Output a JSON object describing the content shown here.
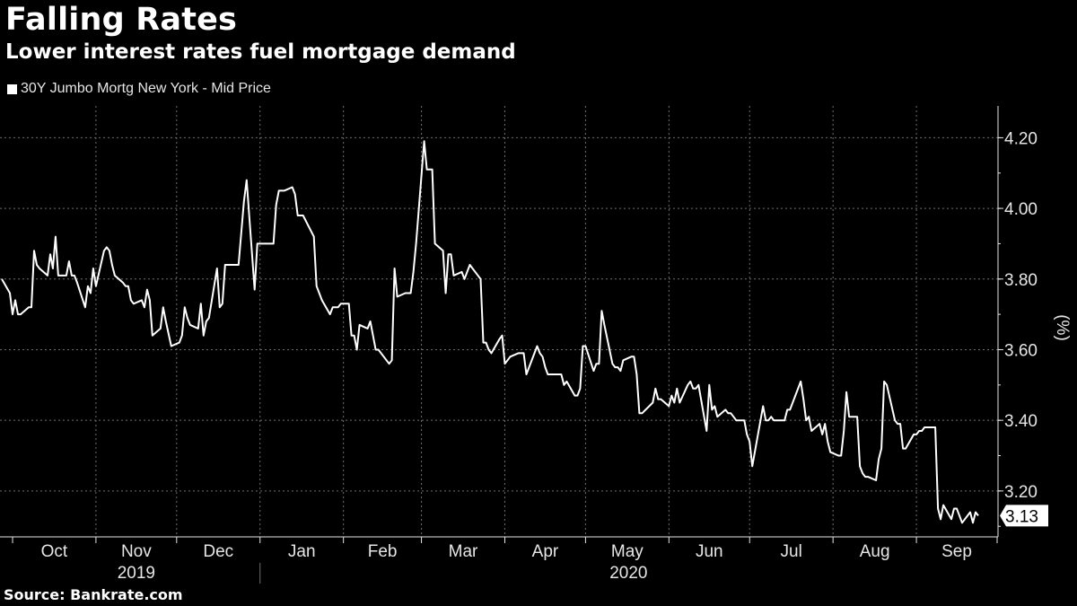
{
  "header": {
    "title": "Falling Rates",
    "subtitle": "Lower interest rates fuel mortgage demand",
    "source": "Source:  Bankrate.com"
  },
  "colors": {
    "background": "#000000",
    "line": "#ffffff",
    "grid": "#6e6e6e",
    "text": "#e6e6e6"
  },
  "chart_data": {
    "type": "line",
    "title": "Falling Rates",
    "subtitle": "Lower interest rates fuel mortgage demand",
    "ylabel": "(%)",
    "ylim": [
      3.07,
      4.29
    ],
    "yticks": [
      3.2,
      3.4,
      3.6,
      3.8,
      4.0,
      4.2
    ],
    "ytick_labels": [
      "3.20",
      "3.40",
      "3.60",
      "3.80",
      "4.00",
      "4.20"
    ],
    "legend": "top-left",
    "grid": true,
    "last_value_label": "3.13",
    "month_labels": [
      "Oct",
      "Nov",
      "Dec",
      "Jan",
      "Feb",
      "Mar",
      "Apr",
      "May",
      "Jun",
      "Jul",
      "Aug",
      "Sep"
    ],
    "year_labels": [
      "2019",
      "2020"
    ],
    "series": [
      {
        "name": "30Y Jumbo Mortg New York - Mid Price",
        "x": [
          "2019-09-27",
          "2019-09-30",
          "2019-10-01",
          "2019-10-02",
          "2019-10-03",
          "2019-10-04",
          "2019-10-07",
          "2019-10-08",
          "2019-10-09",
          "2019-10-10",
          "2019-10-11",
          "2019-10-14",
          "2019-10-15",
          "2019-10-16",
          "2019-10-17",
          "2019-10-18",
          "2019-10-21",
          "2019-10-22",
          "2019-10-23",
          "2019-10-24",
          "2019-10-25",
          "2019-10-28",
          "2019-10-29",
          "2019-10-30",
          "2019-10-31",
          "2019-11-01",
          "2019-11-04",
          "2019-11-05",
          "2019-11-06",
          "2019-11-07",
          "2019-11-08",
          "2019-11-11",
          "2019-11-12",
          "2019-11-13",
          "2019-11-14",
          "2019-11-15",
          "2019-11-18",
          "2019-11-19",
          "2019-11-20",
          "2019-11-21",
          "2019-11-22",
          "2019-11-25",
          "2019-11-26",
          "2019-11-27",
          "2019-11-29",
          "2019-12-02",
          "2019-12-03",
          "2019-12-04",
          "2019-12-05",
          "2019-12-06",
          "2019-12-09",
          "2019-12-10",
          "2019-12-11",
          "2019-12-12",
          "2019-12-13",
          "2019-12-16",
          "2019-12-17",
          "2019-12-18",
          "2019-12-19",
          "2019-12-20",
          "2019-12-23",
          "2019-12-24",
          "2019-12-26",
          "2019-12-27",
          "2019-12-30",
          "2019-12-31",
          "2020-01-02",
          "2020-01-03",
          "2020-01-06",
          "2020-01-07",
          "2020-01-08",
          "2020-01-09",
          "2020-01-10",
          "2020-01-13",
          "2020-01-14",
          "2020-01-15",
          "2020-01-16",
          "2020-01-17",
          "2020-01-21",
          "2020-01-22",
          "2020-01-23",
          "2020-01-24",
          "2020-01-27",
          "2020-01-28",
          "2020-01-29",
          "2020-01-30",
          "2020-01-31",
          "2020-02-03",
          "2020-02-04",
          "2020-02-05",
          "2020-02-06",
          "2020-02-07",
          "2020-02-10",
          "2020-02-11",
          "2020-02-12",
          "2020-02-13",
          "2020-02-14",
          "2020-02-18",
          "2020-02-19",
          "2020-02-20",
          "2020-02-21",
          "2020-02-24",
          "2020-02-25",
          "2020-02-26",
          "2020-02-27",
          "2020-02-28",
          "2020-03-02",
          "2020-03-03",
          "2020-03-04",
          "2020-03-05",
          "2020-03-06",
          "2020-03-09",
          "2020-03-10",
          "2020-03-11",
          "2020-03-12",
          "2020-03-13",
          "2020-03-16",
          "2020-03-17",
          "2020-03-18",
          "2020-03-19",
          "2020-03-20",
          "2020-03-23",
          "2020-03-24",
          "2020-03-25",
          "2020-03-26",
          "2020-03-27",
          "2020-03-30",
          "2020-03-31",
          "2020-04-01",
          "2020-04-02",
          "2020-04-03",
          "2020-04-06",
          "2020-04-07",
          "2020-04-08",
          "2020-04-09",
          "2020-04-13",
          "2020-04-14",
          "2020-04-15",
          "2020-04-16",
          "2020-04-17",
          "2020-04-20",
          "2020-04-21",
          "2020-04-22",
          "2020-04-23",
          "2020-04-24",
          "2020-04-27",
          "2020-04-28",
          "2020-04-29",
          "2020-04-30",
          "2020-05-01",
          "2020-05-04",
          "2020-05-05",
          "2020-05-06",
          "2020-05-07",
          "2020-05-08",
          "2020-05-11",
          "2020-05-12",
          "2020-05-13",
          "2020-05-14",
          "2020-05-15",
          "2020-05-18",
          "2020-05-19",
          "2020-05-20",
          "2020-05-21",
          "2020-05-22",
          "2020-05-26",
          "2020-05-27",
          "2020-05-28",
          "2020-05-29",
          "2020-06-01",
          "2020-06-02",
          "2020-06-03",
          "2020-06-04",
          "2020-06-05",
          "2020-06-08",
          "2020-06-09",
          "2020-06-10",
          "2020-06-11",
          "2020-06-12",
          "2020-06-15",
          "2020-06-16",
          "2020-06-17",
          "2020-06-18",
          "2020-06-19",
          "2020-06-22",
          "2020-06-23",
          "2020-06-24",
          "2020-06-25",
          "2020-06-26",
          "2020-06-29",
          "2020-06-30",
          "2020-07-01",
          "2020-07-02",
          "2020-07-06",
          "2020-07-07",
          "2020-07-08",
          "2020-07-09",
          "2020-07-10",
          "2020-07-13",
          "2020-07-14",
          "2020-07-15",
          "2020-07-16",
          "2020-07-17",
          "2020-07-20",
          "2020-07-21",
          "2020-07-22",
          "2020-07-23",
          "2020-07-24",
          "2020-07-27",
          "2020-07-28",
          "2020-07-29",
          "2020-07-30",
          "2020-07-31",
          "2020-08-03",
          "2020-08-04",
          "2020-08-05",
          "2020-08-06",
          "2020-08-07",
          "2020-08-10",
          "2020-08-11",
          "2020-08-12",
          "2020-08-13",
          "2020-08-14",
          "2020-08-17",
          "2020-08-18",
          "2020-08-19",
          "2020-08-20",
          "2020-08-21",
          "2020-08-24",
          "2020-08-25",
          "2020-08-26",
          "2020-08-27",
          "2020-08-28",
          "2020-08-31",
          "2020-09-01",
          "2020-09-02",
          "2020-09-03",
          "2020-09-04",
          "2020-09-08",
          "2020-09-09",
          "2020-09-10",
          "2020-09-11",
          "2020-09-14",
          "2020-09-15",
          "2020-09-16",
          "2020-09-17",
          "2020-09-18",
          "2020-09-21",
          "2020-09-22",
          "2020-09-23",
          "2020-09-24"
        ],
        "values": [
          3.8,
          3.76,
          3.7,
          3.74,
          3.7,
          3.7,
          3.72,
          3.72,
          3.88,
          3.84,
          3.83,
          3.81,
          3.87,
          3.83,
          3.92,
          3.81,
          3.81,
          3.85,
          3.81,
          3.81,
          3.79,
          3.72,
          3.78,
          3.76,
          3.83,
          3.78,
          3.88,
          3.89,
          3.88,
          3.84,
          3.81,
          3.79,
          3.78,
          3.78,
          3.74,
          3.73,
          3.74,
          3.72,
          3.77,
          3.74,
          3.64,
          3.66,
          3.72,
          3.68,
          3.61,
          3.62,
          3.64,
          3.72,
          3.69,
          3.67,
          3.66,
          3.73,
          3.64,
          3.68,
          3.69,
          3.83,
          3.72,
          3.73,
          3.84,
          3.84,
          3.84,
          3.84,
          4.02,
          4.08,
          3.77,
          3.9,
          3.9,
          3.9,
          3.9,
          4.01,
          4.05,
          4.05,
          4.05,
          4.06,
          4.04,
          3.98,
          3.98,
          3.98,
          3.92,
          3.78,
          3.76,
          3.74,
          3.7,
          3.72,
          3.72,
          3.72,
          3.73,
          3.73,
          3.64,
          3.64,
          3.6,
          3.67,
          3.66,
          3.68,
          3.64,
          3.6,
          3.6,
          3.56,
          3.57,
          3.83,
          3.75,
          3.76,
          3.76,
          3.76,
          3.82,
          3.9,
          4.19,
          4.11,
          4.11,
          4.11,
          3.9,
          3.88,
          3.76,
          3.87,
          3.87,
          3.81,
          3.82,
          3.8,
          3.82,
          3.84,
          3.83,
          3.8,
          3.62,
          3.62,
          3.6,
          3.59,
          3.63,
          3.64,
          3.56,
          3.57,
          3.58,
          3.59,
          3.59,
          3.59,
          3.53,
          3.61,
          3.59,
          3.58,
          3.55,
          3.53,
          3.53,
          3.53,
          3.53,
          3.5,
          3.51,
          3.47,
          3.47,
          3.49,
          3.61,
          3.61,
          3.54,
          3.56,
          3.56,
          3.71,
          3.67,
          3.56,
          3.55,
          3.55,
          3.54,
          3.57,
          3.58,
          3.58,
          3.53,
          3.42,
          3.42,
          3.45,
          3.49,
          3.46,
          3.46,
          3.44,
          3.47,
          3.45,
          3.49,
          3.45,
          3.5,
          3.51,
          3.49,
          3.49,
          3.5,
          3.37,
          3.5,
          3.43,
          3.44,
          3.41,
          3.43,
          3.42,
          3.42,
          3.41,
          3.4,
          3.4,
          3.36,
          3.34,
          3.27,
          3.44,
          3.4,
          3.4,
          3.41,
          3.4,
          3.4,
          3.4,
          3.43,
          3.43,
          3.45,
          3.51,
          3.46,
          3.4,
          3.41,
          3.37,
          3.39,
          3.36,
          3.39,
          3.34,
          3.31,
          3.3,
          3.3,
          3.37,
          3.48,
          3.41,
          3.41,
          3.27,
          3.25,
          3.24,
          3.24,
          3.23,
          3.29,
          3.32,
          3.51,
          3.5,
          3.4,
          3.39,
          3.39,
          3.32,
          3.32,
          3.36,
          3.36,
          3.37,
          3.37,
          3.38,
          3.38,
          3.15,
          3.12,
          3.16,
          3.12,
          3.15,
          3.15,
          3.13,
          3.11,
          3.14,
          3.11,
          3.14,
          3.13
        ]
      }
    ]
  }
}
